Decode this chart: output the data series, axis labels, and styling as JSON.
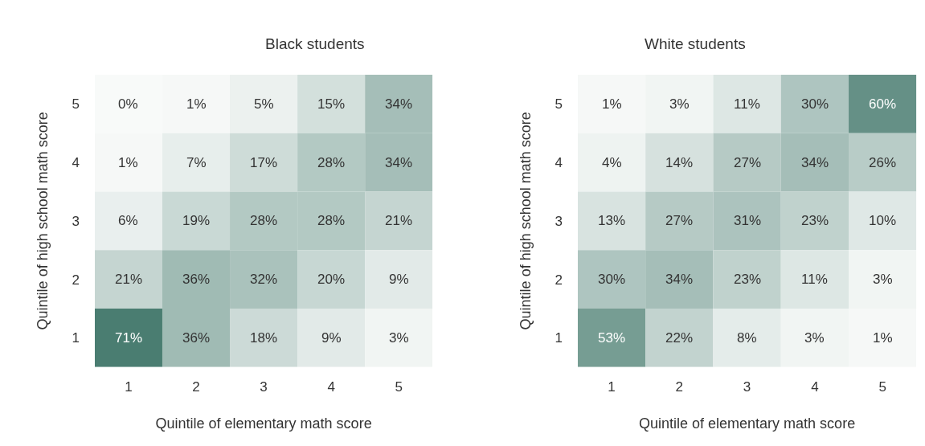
{
  "chart_data": [
    {
      "type": "heatmap",
      "title": "Black students",
      "xlabel": "Quintile of elementary math score",
      "ylabel": "Quintile of high school math score",
      "categories": [
        "1",
        "2",
        "3",
        "4",
        "5"
      ],
      "y_categories": [
        "5",
        "4",
        "3",
        "2",
        "1"
      ],
      "color": "#4a7d71",
      "cells": [
        [
          0,
          1,
          5,
          15,
          34
        ],
        [
          1,
          7,
          17,
          28,
          34
        ],
        [
          6,
          19,
          28,
          28,
          21
        ],
        [
          21,
          36,
          32,
          20,
          9
        ],
        [
          71,
          36,
          18,
          9,
          3
        ]
      ],
      "cell_labels": [
        [
          "0%",
          "1%",
          "5%",
          "15%",
          "34%"
        ],
        [
          "1%",
          "7%",
          "17%",
          "28%",
          "34%"
        ],
        [
          "6%",
          "19%",
          "28%",
          "28%",
          "21%"
        ],
        [
          "21%",
          "36%",
          "32%",
          "20%",
          "9%"
        ],
        [
          "71%",
          "36%",
          "18%",
          "9%",
          "3%"
        ]
      ]
    },
    {
      "type": "heatmap",
      "title": "White students",
      "xlabel": "Quintile of elementary math score",
      "ylabel": "Quintile of high school math score",
      "categories": [
        "1",
        "2",
        "3",
        "4",
        "5"
      ],
      "y_categories": [
        "5",
        "4",
        "3",
        "2",
        "1"
      ],
      "color": "#4a7d71",
      "cells": [
        [
          1,
          3,
          11,
          30,
          60
        ],
        [
          4,
          14,
          27,
          34,
          26
        ],
        [
          13,
          27,
          31,
          23,
          10
        ],
        [
          30,
          34,
          23,
          11,
          3
        ],
        [
          53,
          22,
          8,
          3,
          1
        ]
      ],
      "cell_labels": [
        [
          "1%",
          "3%",
          "11%",
          "30%",
          "60%"
        ],
        [
          "4%",
          "14%",
          "27%",
          "34%",
          "26%"
        ],
        [
          "13%",
          "27%",
          "31%",
          "23%",
          "10%"
        ],
        [
          "30%",
          "34%",
          "23%",
          "11%",
          "3%"
        ],
        [
          "53%",
          "22%",
          "8%",
          "3%",
          "1%"
        ]
      ]
    }
  ]
}
